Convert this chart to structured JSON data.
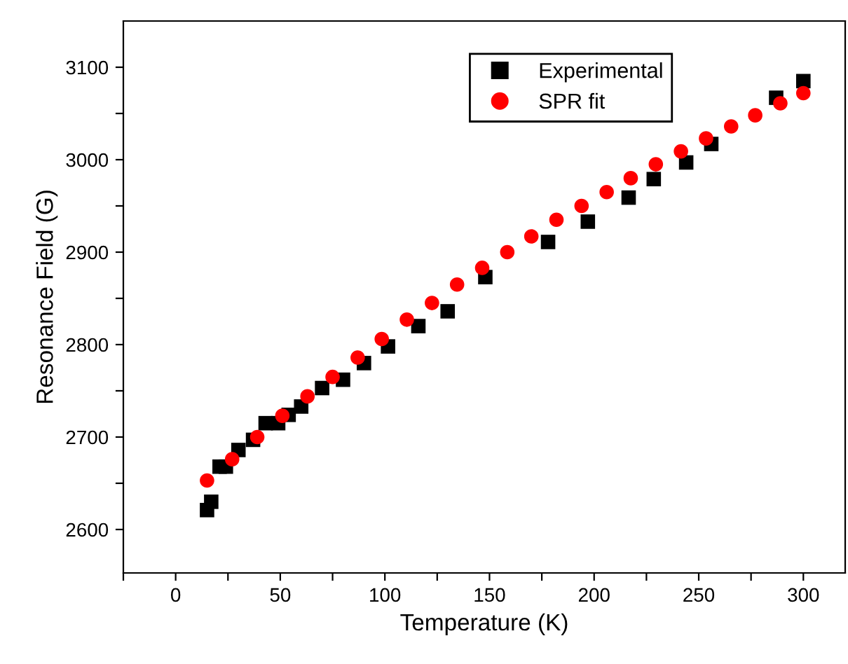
{
  "chart_data": {
    "type": "scatter",
    "xlabel": "Temperature (K)",
    "ylabel": "Resonance Field (G)",
    "xlim": [
      -25,
      320
    ],
    "ylim": [
      2553,
      3150
    ],
    "xticks": [
      {
        "value": -25,
        "label": null
      },
      0,
      {
        "value": 25,
        "label": null
      },
      50,
      {
        "value": 75,
        "label": null
      },
      100,
      {
        "value": 125,
        "label": null
      },
      150,
      {
        "value": 175,
        "label": null
      },
      200,
      {
        "value": 225,
        "label": null
      },
      250,
      {
        "value": 275,
        "label": null
      },
      300
    ],
    "yticks": [
      2600,
      {
        "value": 2650,
        "label": null
      },
      2700,
      {
        "value": 2750,
        "label": null
      },
      2800,
      {
        "value": 2850,
        "label": null
      },
      2900,
      {
        "value": 2950,
        "label": null
      },
      3000,
      {
        "value": 3050,
        "label": null
      },
      3100
    ],
    "grid": false,
    "legend": "top",
    "series": [
      {
        "name": "Experimental",
        "color": "#000000",
        "marker": "square",
        "x": [
          15,
          17,
          21,
          24,
          30,
          37,
          43,
          49,
          54,
          60,
          70,
          80,
          90,
          101.5,
          116,
          130,
          148,
          178,
          197,
          216.5,
          228.5,
          244,
          256,
          287,
          300
        ],
        "values": [
          2621,
          2630,
          2668,
          2668,
          2686,
          2697,
          2715,
          2715,
          2724,
          2733,
          2753,
          2762,
          2780,
          2798,
          2820,
          2836,
          2873,
          2911,
          2933,
          2959,
          2979,
          2997,
          3017,
          3067,
          3085
        ]
      },
      {
        "name": "SPR fit",
        "color": "#ff0000",
        "marker": "circle",
        "x": [
          15,
          27,
          39,
          51,
          63,
          75,
          87,
          98.5,
          110.5,
          122.5,
          134.5,
          146.5,
          158.5,
          170,
          182,
          194,
          206,
          217.5,
          229.5,
          241.5,
          253.5,
          265.5,
          277,
          289,
          300
        ],
        "values": [
          2653,
          2676,
          2700,
          2723,
          2744,
          2765,
          2786,
          2806,
          2827,
          2845,
          2865,
          2883,
          2900,
          2917,
          2935,
          2950,
          2965,
          2980,
          2995,
          3009,
          3023,
          3036,
          3048,
          3061,
          3072
        ]
      }
    ]
  }
}
